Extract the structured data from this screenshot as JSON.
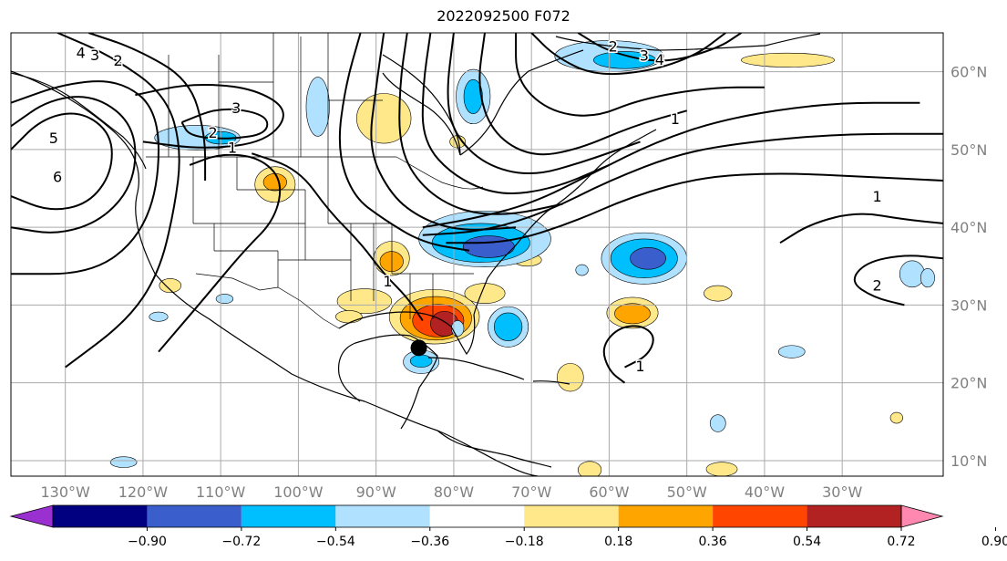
{
  "chart_data": {
    "type": "contour-map",
    "title": "2022092500 F072",
    "lon_ticks": [
      "130°W",
      "120°W",
      "110°W",
      "100°W",
      "90°W",
      "80°W",
      "70°W",
      "60°W",
      "50°W",
      "40°W",
      "30°W"
    ],
    "lon_values": [
      -130,
      -120,
      -110,
      -100,
      -90,
      -80,
      -70,
      -60,
      -50,
      -40,
      -30
    ],
    "lat_ticks": [
      "10°N",
      "20°N",
      "30°N",
      "40°N",
      "50°N",
      "60°N"
    ],
    "lat_values": [
      10,
      20,
      30,
      40,
      50,
      60
    ],
    "extent": {
      "lon": [
        -137,
        -17
      ],
      "lat": [
        8,
        65
      ]
    },
    "grid": true,
    "colorbar": {
      "ticks": [
        "−0.90",
        "−0.72",
        "−0.54",
        "−0.36",
        "−0.18",
        "0.18",
        "0.36",
        "0.54",
        "0.72",
        "0.90"
      ],
      "colors": [
        "#9b30d0",
        "#000080",
        "#3a5fcd",
        "#00bfff",
        "#b0e2ff",
        "#ffffff",
        "#ffe88a",
        "#ffa500",
        "#ff4500",
        "#b22222",
        "#ff88b0"
      ],
      "extend": "both"
    },
    "contour_labels": [
      {
        "text": "4",
        "lon": -128,
        "lat": 62.5
      },
      {
        "text": "3",
        "lon": -126.2,
        "lat": 62.2
      },
      {
        "text": "2",
        "lon": -123.2,
        "lat": 61.5
      },
      {
        "text": "3",
        "lon": -108,
        "lat": 55.4
      },
      {
        "text": "2",
        "lon": -111,
        "lat": 52.2
      },
      {
        "text": "1",
        "lon": -108.5,
        "lat": 50.3
      },
      {
        "text": "5",
        "lon": -131.5,
        "lat": 51.5
      },
      {
        "text": "6",
        "lon": -131,
        "lat": 46.5
      },
      {
        "text": "2",
        "lon": -59.5,
        "lat": 63.3
      },
      {
        "text": "3",
        "lon": -55.5,
        "lat": 62.1
      },
      {
        "text": "4",
        "lon": -53.5,
        "lat": 61.6
      },
      {
        "text": "1",
        "lon": -51.5,
        "lat": 54
      },
      {
        "text": "1",
        "lon": -25.5,
        "lat": 44
      },
      {
        "text": "2",
        "lon": -25.5,
        "lat": 32.6
      },
      {
        "text": "1",
        "lon": -88.5,
        "lat": 33.1
      },
      {
        "text": "1",
        "lon": -56,
        "lat": 22.2
      }
    ],
    "shaded_regions": [
      {
        "level": "0.18-0.36",
        "lon": -89,
        "lat": 54,
        "rx": 3.5,
        "ry": 3.2
      },
      {
        "level": "0.18-0.36",
        "lon": -103,
        "lat": 45.5,
        "rx": 2.6,
        "ry": 2.3
      },
      {
        "level": "0.36-0.54",
        "lon": -103,
        "lat": 45.8,
        "rx": 1.5,
        "ry": 1.1
      },
      {
        "level": "0.18-0.36",
        "lon": -91.5,
        "lat": 30.5,
        "rx": 3.5,
        "ry": 1.6
      },
      {
        "level": "0.18-0.36",
        "lon": -88,
        "lat": 36,
        "rx": 2.3,
        "ry": 2.2
      },
      {
        "level": "0.36-0.54",
        "lon": -88,
        "lat": 35.6,
        "rx": 1.5,
        "ry": 1.3
      },
      {
        "level": "0.18-0.36",
        "lon": -93.5,
        "lat": 28.5,
        "rx": 1.7,
        "ry": 0.8
      },
      {
        "level": "0.18-0.36",
        "lon": -116.5,
        "lat": 32.5,
        "rx": 1.4,
        "ry": 0.9
      },
      {
        "level": "0.18-0.36",
        "lon": -82.5,
        "lat": 28.5,
        "rx": 5.8,
        "ry": 3.5
      },
      {
        "level": "0.36-0.54",
        "lon": -82.3,
        "lat": 28.3,
        "rx": 4.6,
        "ry": 2.8
      },
      {
        "level": "0.54-0.72",
        "lon": -82,
        "lat": 28,
        "rx": 3.3,
        "ry": 2.1
      },
      {
        "level": "0.72-0.90",
        "lon": -81.2,
        "lat": 27.6,
        "rx": 1.8,
        "ry": 1.6
      },
      {
        "level": "0.18-0.36",
        "lon": -76,
        "lat": 31.5,
        "rx": 2.6,
        "ry": 1.3
      },
      {
        "level": "0.18-0.36",
        "lon": -70.5,
        "lat": 35.8,
        "rx": 1.8,
        "ry": 0.8
      },
      {
        "level": "0.18-0.36",
        "lon": -57,
        "lat": 29,
        "rx": 3.3,
        "ry": 2
      },
      {
        "level": "0.36-0.54",
        "lon": -57,
        "lat": 28.9,
        "rx": 2.3,
        "ry": 1.3
      },
      {
        "level": "0.18-0.36",
        "lon": -46,
        "lat": 31.5,
        "rx": 1.8,
        "ry": 1
      },
      {
        "level": "0.18-0.36",
        "lon": -65,
        "lat": 20.7,
        "rx": 1.7,
        "ry": 1.8
      },
      {
        "level": "0.18-0.36",
        "lon": -62.5,
        "lat": 8.8,
        "rx": 1.5,
        "ry": 1.1
      },
      {
        "level": "0.18-0.36",
        "lon": -45.5,
        "lat": 8.9,
        "rx": 2,
        "ry": 0.9
      },
      {
        "level": "0.18-0.36",
        "lon": -37,
        "lat": 61.5,
        "rx": 6,
        "ry": 0.9
      },
      {
        "level": "0.18-0.36",
        "lon": -79.5,
        "lat": 51,
        "rx": 1,
        "ry": 0.8
      },
      {
        "level": "0.18-0.36",
        "lon": -23,
        "lat": 15.5,
        "rx": 0.8,
        "ry": 0.7
      },
      {
        "level": "-0.36--0.18",
        "lon": -113,
        "lat": 51.5,
        "rx": 5.5,
        "ry": 1.6
      },
      {
        "level": "-0.54--0.36",
        "lon": -110,
        "lat": 51.5,
        "rx": 2,
        "ry": 0.8
      },
      {
        "level": "-0.36--0.18",
        "lon": -97.5,
        "lat": 55.5,
        "rx": 1.5,
        "ry": 3.8
      },
      {
        "level": "-0.36--0.18",
        "lon": -77.5,
        "lat": 56.8,
        "rx": 2.2,
        "ry": 3.5
      },
      {
        "level": "-0.54--0.36",
        "lon": -77.5,
        "lat": 56.8,
        "rx": 1.2,
        "ry": 2.2
      },
      {
        "level": "-0.36--0.18",
        "lon": -60,
        "lat": 62,
        "rx": 7,
        "ry": 2
      },
      {
        "level": "-0.54--0.36",
        "lon": -58,
        "lat": 61.5,
        "rx": 4,
        "ry": 1.1
      },
      {
        "level": "-0.36--0.18",
        "lon": -76,
        "lat": 38.5,
        "rx": 8.5,
        "ry": 3.6
      },
      {
        "level": "-0.54--0.36",
        "lon": -76.5,
        "lat": 38,
        "rx": 6.3,
        "ry": 2.5
      },
      {
        "level": "-0.72--0.54",
        "lon": -75.5,
        "lat": 37.5,
        "rx": 3.3,
        "ry": 1.4
      },
      {
        "level": "-0.36--0.18",
        "lon": -55.5,
        "lat": 36,
        "rx": 5.5,
        "ry": 3.3
      },
      {
        "level": "-0.54--0.36",
        "lon": -55.5,
        "lat": 36,
        "rx": 4.3,
        "ry": 2.5
      },
      {
        "level": "-0.72--0.54",
        "lon": -55,
        "lat": 36,
        "rx": 2.3,
        "ry": 1.4
      },
      {
        "level": "-0.36--0.18",
        "lon": -73,
        "lat": 27.2,
        "rx": 2.6,
        "ry": 2.6
      },
      {
        "level": "-0.54--0.36",
        "lon": -73,
        "lat": 27.2,
        "rx": 1.8,
        "ry": 1.8
      },
      {
        "level": "-0.36--0.18",
        "lon": -84.2,
        "lat": 22.7,
        "rx": 2.3,
        "ry": 1.5
      },
      {
        "level": "-0.54--0.36",
        "lon": -84.2,
        "lat": 22.8,
        "rx": 1.4,
        "ry": 0.8
      },
      {
        "level": "-0.36--0.18",
        "lon": -21,
        "lat": 34,
        "rx": 1.6,
        "ry": 1.7
      },
      {
        "level": "-0.36--0.18",
        "lon": -19,
        "lat": 33.5,
        "rx": 0.9,
        "ry": 1.2
      },
      {
        "level": "-0.36--0.18",
        "lon": -46,
        "lat": 14.8,
        "rx": 1,
        "ry": 1.1
      },
      {
        "level": "-0.36--0.18",
        "lon": -122.5,
        "lat": 9.8,
        "rx": 1.7,
        "ry": 0.7
      },
      {
        "level": "-0.36--0.18",
        "lon": -36.5,
        "lat": 24,
        "rx": 1.7,
        "ry": 0.8
      },
      {
        "level": "-0.36--0.18",
        "lon": -118,
        "lat": 28.5,
        "rx": 1.2,
        "ry": 0.6
      },
      {
        "level": "-0.36--0.18",
        "lon": -63.5,
        "lat": 34.5,
        "rx": 0.8,
        "ry": 0.7
      },
      {
        "level": "-0.36--0.18",
        "lon": -109.5,
        "lat": 30.8,
        "rx": 1.1,
        "ry": 0.6
      },
      {
        "level": "-0.36--0.18",
        "lon": -79.5,
        "lat": 27,
        "rx": 0.8,
        "ry": 1
      }
    ],
    "marker": {
      "label": "storm center",
      "lon": -84.5,
      "lat": 24.5
    },
    "units_note": ""
  }
}
